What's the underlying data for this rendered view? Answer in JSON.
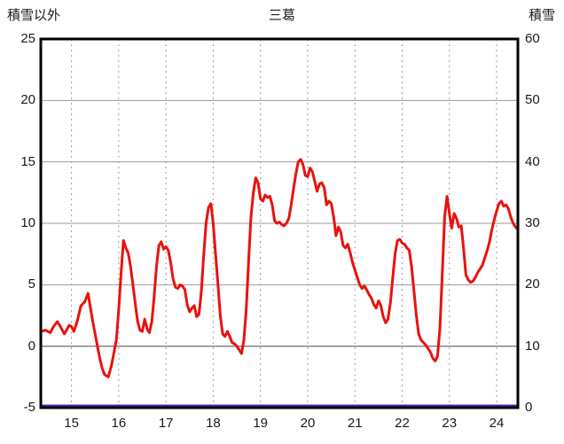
{
  "chart_data": {
    "type": "line",
    "title": "三葛",
    "left_axis": {
      "label": "積雪以外",
      "min": -5,
      "max": 25,
      "ticks": [
        -5,
        0,
        5,
        10,
        15,
        20,
        25
      ]
    },
    "right_axis": {
      "label": "積雪",
      "min": 0,
      "max": 60,
      "ticks": [
        0,
        10,
        20,
        30,
        40,
        50,
        60
      ]
    },
    "x_axis": {
      "min": 14.35,
      "max": 24.45,
      "ticks": [
        15,
        16,
        17,
        18,
        19,
        20,
        21,
        22,
        23,
        24
      ]
    },
    "grid": {
      "horizontal": "solid",
      "vertical": "dashed",
      "grid_color": "#9a9a9a",
      "border_color": "#000000"
    },
    "series": [
      {
        "name": "積雪以外",
        "axis": "left",
        "color": "#e8120e",
        "width": 3,
        "points": [
          [
            14.35,
            1.2
          ],
          [
            14.45,
            1.3
          ],
          [
            14.55,
            1.1
          ],
          [
            14.62,
            1.6
          ],
          [
            14.7,
            2.0
          ],
          [
            14.78,
            1.5
          ],
          [
            14.85,
            1.0
          ],
          [
            14.95,
            1.7
          ],
          [
            15.0,
            1.6
          ],
          [
            15.05,
            1.2
          ],
          [
            15.12,
            2.0
          ],
          [
            15.2,
            3.3
          ],
          [
            15.28,
            3.6
          ],
          [
            15.35,
            4.3
          ],
          [
            15.45,
            2.0
          ],
          [
            15.55,
            0.0
          ],
          [
            15.6,
            -1.0
          ],
          [
            15.65,
            -1.8
          ],
          [
            15.7,
            -2.3
          ],
          [
            15.78,
            -2.5
          ],
          [
            15.85,
            -1.5
          ],
          [
            15.95,
            0.5
          ],
          [
            16.0,
            3.0
          ],
          [
            16.05,
            6.0
          ],
          [
            16.1,
            8.6
          ],
          [
            16.15,
            8.0
          ],
          [
            16.2,
            7.6
          ],
          [
            16.25,
            6.5
          ],
          [
            16.3,
            5.0
          ],
          [
            16.35,
            3.5
          ],
          [
            16.4,
            2.0
          ],
          [
            16.45,
            1.3
          ],
          [
            16.5,
            1.2
          ],
          [
            16.55,
            2.2
          ],
          [
            16.6,
            1.4
          ],
          [
            16.65,
            1.1
          ],
          [
            16.7,
            2.0
          ],
          [
            16.75,
            4.0
          ],
          [
            16.8,
            6.5
          ],
          [
            16.85,
            8.2
          ],
          [
            16.9,
            8.5
          ],
          [
            16.95,
            7.9
          ],
          [
            17.0,
            8.1
          ],
          [
            17.05,
            7.8
          ],
          [
            17.1,
            6.8
          ],
          [
            17.15,
            5.5
          ],
          [
            17.2,
            4.8
          ],
          [
            17.25,
            4.7
          ],
          [
            17.3,
            5.0
          ],
          [
            17.35,
            4.9
          ],
          [
            17.4,
            4.6
          ],
          [
            17.45,
            3.4
          ],
          [
            17.5,
            2.8
          ],
          [
            17.55,
            3.1
          ],
          [
            17.6,
            3.3
          ],
          [
            17.65,
            2.4
          ],
          [
            17.7,
            2.6
          ],
          [
            17.75,
            4.5
          ],
          [
            17.8,
            7.5
          ],
          [
            17.85,
            10.0
          ],
          [
            17.9,
            11.3
          ],
          [
            17.95,
            11.6
          ],
          [
            18.0,
            10.0
          ],
          [
            18.05,
            7.5
          ],
          [
            18.1,
            5.0
          ],
          [
            18.15,
            2.5
          ],
          [
            18.2,
            1.0
          ],
          [
            18.25,
            0.8
          ],
          [
            18.3,
            1.2
          ],
          [
            18.35,
            0.8
          ],
          [
            18.4,
            0.3
          ],
          [
            18.45,
            0.2
          ],
          [
            18.5,
            0.0
          ],
          [
            18.55,
            -0.3
          ],
          [
            18.6,
            -0.6
          ],
          [
            18.65,
            0.5
          ],
          [
            18.7,
            3.0
          ],
          [
            18.75,
            7.0
          ],
          [
            18.8,
            10.5
          ],
          [
            18.85,
            12.5
          ],
          [
            18.9,
            13.7
          ],
          [
            18.95,
            13.3
          ],
          [
            19.0,
            12.0
          ],
          [
            19.05,
            11.8
          ],
          [
            19.1,
            12.3
          ],
          [
            19.15,
            12.1
          ],
          [
            19.2,
            12.2
          ],
          [
            19.25,
            11.5
          ],
          [
            19.3,
            10.2
          ],
          [
            19.35,
            10.0
          ],
          [
            19.4,
            10.1
          ],
          [
            19.45,
            9.9
          ],
          [
            19.5,
            9.8
          ],
          [
            19.55,
            10.0
          ],
          [
            19.6,
            10.4
          ],
          [
            19.65,
            11.5
          ],
          [
            19.7,
            12.8
          ],
          [
            19.75,
            14.0
          ],
          [
            19.8,
            15.0
          ],
          [
            19.85,
            15.2
          ],
          [
            19.9,
            14.8
          ],
          [
            19.95,
            13.9
          ],
          [
            20.0,
            13.8
          ],
          [
            20.05,
            14.5
          ],
          [
            20.1,
            14.2
          ],
          [
            20.15,
            13.4
          ],
          [
            20.2,
            12.6
          ],
          [
            20.25,
            13.2
          ],
          [
            20.3,
            13.3
          ],
          [
            20.35,
            12.9
          ],
          [
            20.4,
            11.5
          ],
          [
            20.45,
            11.8
          ],
          [
            20.5,
            11.6
          ],
          [
            20.55,
            10.5
          ],
          [
            20.6,
            9.0
          ],
          [
            20.65,
            9.7
          ],
          [
            20.7,
            9.3
          ],
          [
            20.75,
            8.2
          ],
          [
            20.8,
            8.0
          ],
          [
            20.85,
            8.3
          ],
          [
            20.9,
            7.6
          ],
          [
            20.95,
            6.8
          ],
          [
            21.0,
            6.2
          ],
          [
            21.05,
            5.6
          ],
          [
            21.1,
            5.0
          ],
          [
            21.15,
            4.7
          ],
          [
            21.2,
            4.9
          ],
          [
            21.25,
            4.6
          ],
          [
            21.3,
            4.2
          ],
          [
            21.35,
            3.9
          ],
          [
            21.4,
            3.4
          ],
          [
            21.45,
            3.1
          ],
          [
            21.5,
            3.7
          ],
          [
            21.55,
            3.3
          ],
          [
            21.6,
            2.4
          ],
          [
            21.65,
            1.9
          ],
          [
            21.7,
            2.2
          ],
          [
            21.75,
            3.5
          ],
          [
            21.8,
            5.5
          ],
          [
            21.85,
            7.5
          ],
          [
            21.9,
            8.6
          ],
          [
            21.95,
            8.7
          ],
          [
            22.0,
            8.4
          ],
          [
            22.05,
            8.3
          ],
          [
            22.1,
            8.0
          ],
          [
            22.15,
            7.8
          ],
          [
            22.2,
            6.5
          ],
          [
            22.25,
            4.5
          ],
          [
            22.3,
            2.5
          ],
          [
            22.35,
            1.0
          ],
          [
            22.4,
            0.5
          ],
          [
            22.45,
            0.3
          ],
          [
            22.5,
            0.1
          ],
          [
            22.55,
            -0.2
          ],
          [
            22.6,
            -0.5
          ],
          [
            22.65,
            -1.0
          ],
          [
            22.7,
            -1.2
          ],
          [
            22.75,
            -0.8
          ],
          [
            22.8,
            1.5
          ],
          [
            22.85,
            6.0
          ],
          [
            22.9,
            10.5
          ],
          [
            22.95,
            12.2
          ],
          [
            23.0,
            10.8
          ],
          [
            23.05,
            9.6
          ],
          [
            23.1,
            10.8
          ],
          [
            23.15,
            10.4
          ],
          [
            23.2,
            9.7
          ],
          [
            23.25,
            9.8
          ],
          [
            23.3,
            8.0
          ],
          [
            23.35,
            5.8
          ],
          [
            23.4,
            5.4
          ],
          [
            23.45,
            5.2
          ],
          [
            23.5,
            5.3
          ],
          [
            23.55,
            5.6
          ],
          [
            23.6,
            6.0
          ],
          [
            23.65,
            6.3
          ],
          [
            23.7,
            6.6
          ],
          [
            23.75,
            7.2
          ],
          [
            23.8,
            7.8
          ],
          [
            23.85,
            8.5
          ],
          [
            23.9,
            9.5
          ],
          [
            23.95,
            10.3
          ],
          [
            24.0,
            11.0
          ],
          [
            24.05,
            11.6
          ],
          [
            24.1,
            11.8
          ],
          [
            24.15,
            11.4
          ],
          [
            24.2,
            11.5
          ],
          [
            24.25,
            11.2
          ],
          [
            24.3,
            10.5
          ],
          [
            24.35,
            10.0
          ],
          [
            24.4,
            9.7
          ],
          [
            24.45,
            9.5
          ]
        ]
      },
      {
        "name": "積雪",
        "axis": "right",
        "color": "#5522aa",
        "width": 3,
        "constant_value": 0
      }
    ]
  }
}
